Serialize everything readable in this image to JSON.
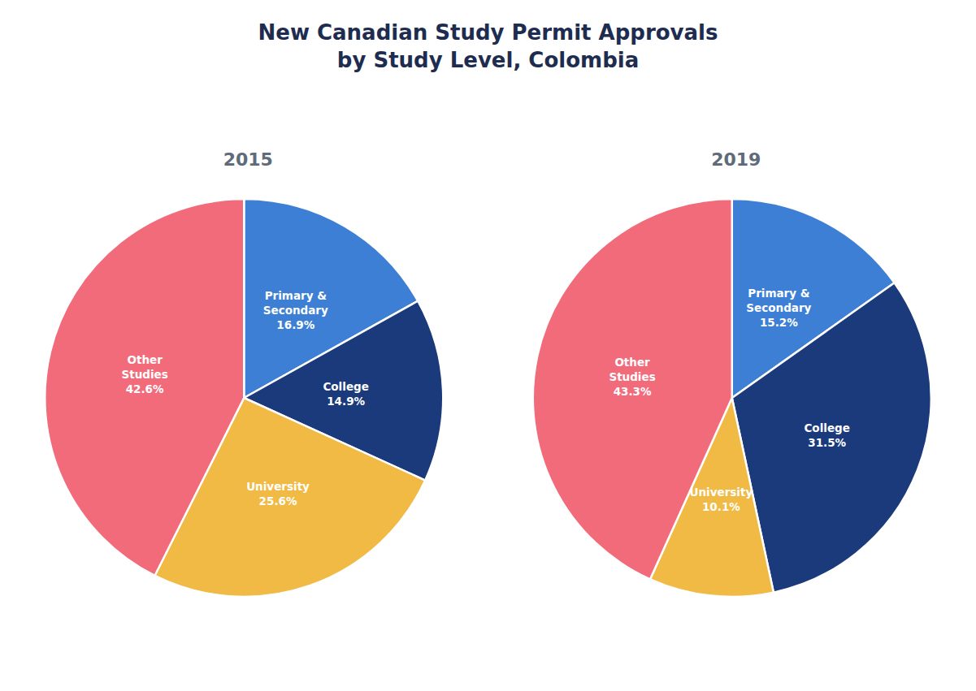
{
  "title": "New Canadian Study Permit Approvals\nby Study Level, Colombia",
  "chart_data": [
    {
      "type": "pie",
      "title": "2015",
      "categories": [
        "Primary &\nSecondary",
        "College",
        "University",
        "Other\nStudies"
      ],
      "values": [
        16.9,
        14.9,
        25.6,
        42.6
      ],
      "value_labels": [
        "16.9%",
        "14.9%",
        "25.6%",
        "42.6%"
      ],
      "colors": [
        "#3d7fd4",
        "#1a3a7c",
        "#f0ba45",
        "#f26b7a"
      ],
      "data_labels": true
    },
    {
      "type": "pie",
      "title": "2019",
      "categories": [
        "Primary &\nSecondary",
        "College",
        "University",
        "Other\nStudies"
      ],
      "values": [
        15.2,
        31.5,
        10.1,
        43.3
      ],
      "value_labels": [
        "15.2%",
        "31.5%",
        "10.1%",
        "43.3%"
      ],
      "colors": [
        "#3d7fd4",
        "#1a3a7c",
        "#f0ba45",
        "#f26b7a"
      ],
      "data_labels": true
    }
  ]
}
